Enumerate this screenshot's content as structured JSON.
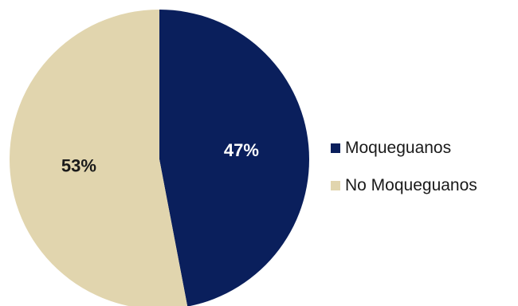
{
  "chart_data": {
    "type": "pie",
    "title": "",
    "categories": [
      "Moqueguanos",
      "No Moqueguanos"
    ],
    "values": [
      47,
      53
    ],
    "value_labels": [
      "47%",
      "53%"
    ],
    "colors": [
      "#0a1f5c",
      "#e1d5ae"
    ],
    "label_colors": [
      "#ffffff",
      "#1a1a1a"
    ],
    "legend_position": "right"
  }
}
